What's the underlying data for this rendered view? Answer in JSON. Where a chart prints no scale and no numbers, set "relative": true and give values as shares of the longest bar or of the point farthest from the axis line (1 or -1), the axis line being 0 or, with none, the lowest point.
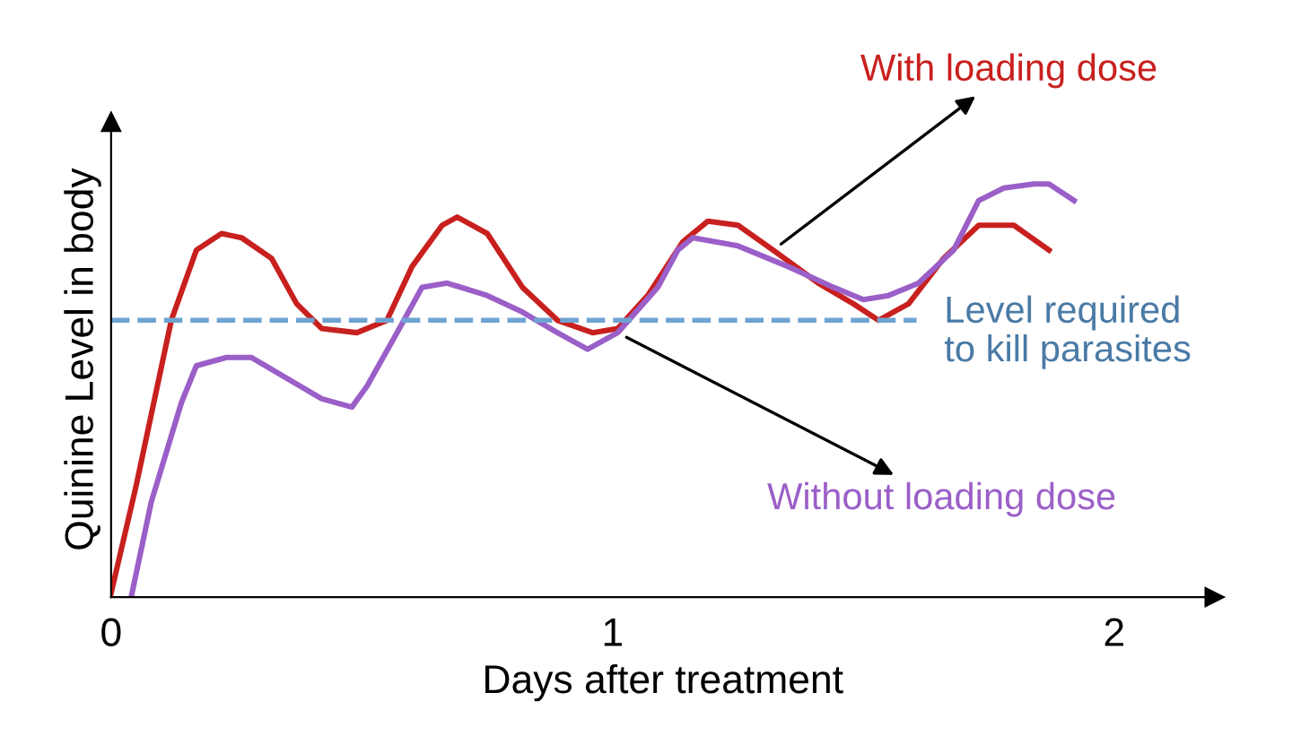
{
  "chart_data": {
    "type": "line",
    "relative": true,
    "xlabel": "Days after treatment",
    "ylabel": "Quinine Level in body",
    "xlim": [
      0,
      2.2
    ],
    "xticks": [
      0,
      1,
      2
    ],
    "grid": false,
    "legend": false,
    "marker": "none",
    "line_style": "solid",
    "series": [
      {
        "name": "With loading dose",
        "color": "#c8201e",
        "x": [
          0.0,
          0.05,
          0.12,
          0.17,
          0.22,
          0.26,
          0.32,
          0.37,
          0.42,
          0.49,
          0.55,
          0.6,
          0.66,
          0.69,
          0.75,
          0.82,
          0.89,
          0.96,
          1.01,
          1.07,
          1.14,
          1.19,
          1.25,
          1.32,
          1.41,
          1.48,
          1.53,
          1.59,
          1.66,
          1.73,
          1.8,
          1.87
        ],
        "values": [
          0.01,
          0.27,
          0.67,
          0.84,
          0.88,
          0.87,
          0.82,
          0.71,
          0.65,
          0.64,
          0.67,
          0.8,
          0.9,
          0.92,
          0.88,
          0.75,
          0.67,
          0.64,
          0.65,
          0.73,
          0.86,
          0.91,
          0.9,
          0.84,
          0.76,
          0.71,
          0.67,
          0.71,
          0.82,
          0.9,
          0.9,
          0.84
        ]
      },
      {
        "name": "Without loading dose",
        "color": "#9b5fc8",
        "x": [
          0.04,
          0.08,
          0.14,
          0.17,
          0.23,
          0.28,
          0.35,
          0.42,
          0.48,
          0.51,
          0.57,
          0.62,
          0.67,
          0.75,
          0.82,
          0.89,
          0.95,
          1.01,
          1.09,
          1.13,
          1.16,
          1.25,
          1.35,
          1.44,
          1.5,
          1.55,
          1.61,
          1.68,
          1.73,
          1.78,
          1.84,
          1.87,
          1.92
        ],
        "values": [
          0.0,
          0.23,
          0.47,
          0.56,
          0.58,
          0.58,
          0.53,
          0.48,
          0.46,
          0.51,
          0.64,
          0.75,
          0.76,
          0.73,
          0.69,
          0.64,
          0.6,
          0.64,
          0.75,
          0.84,
          0.87,
          0.85,
          0.8,
          0.75,
          0.72,
          0.73,
          0.76,
          0.84,
          0.96,
          0.99,
          1.0,
          1.0,
          0.96
        ]
      }
    ],
    "ref_lines": [
      {
        "axis": "y",
        "value": 0.67,
        "label": "Level required\nto kill parasites",
        "color": "#6fa3d2",
        "line_style": "dashed"
      }
    ]
  }
}
